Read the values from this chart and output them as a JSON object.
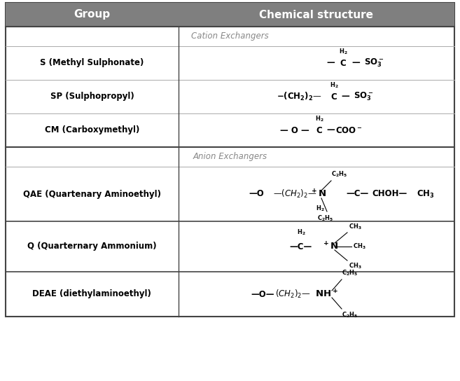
{
  "header_bg": "#7f7f7f",
  "header_text_color": "white",
  "col1_header": "Group",
  "col2_header": "Chemical structure",
  "section_cation": "Cation Exchangers",
  "section_anion": "Anion Exchangers",
  "col_split": 0.385,
  "bg_color": "white",
  "border_color": "#444444",
  "section_text_color": "#888888",
  "group_font_size": 8.5,
  "chem_font_size": 8.5,
  "header_font_size": 11
}
